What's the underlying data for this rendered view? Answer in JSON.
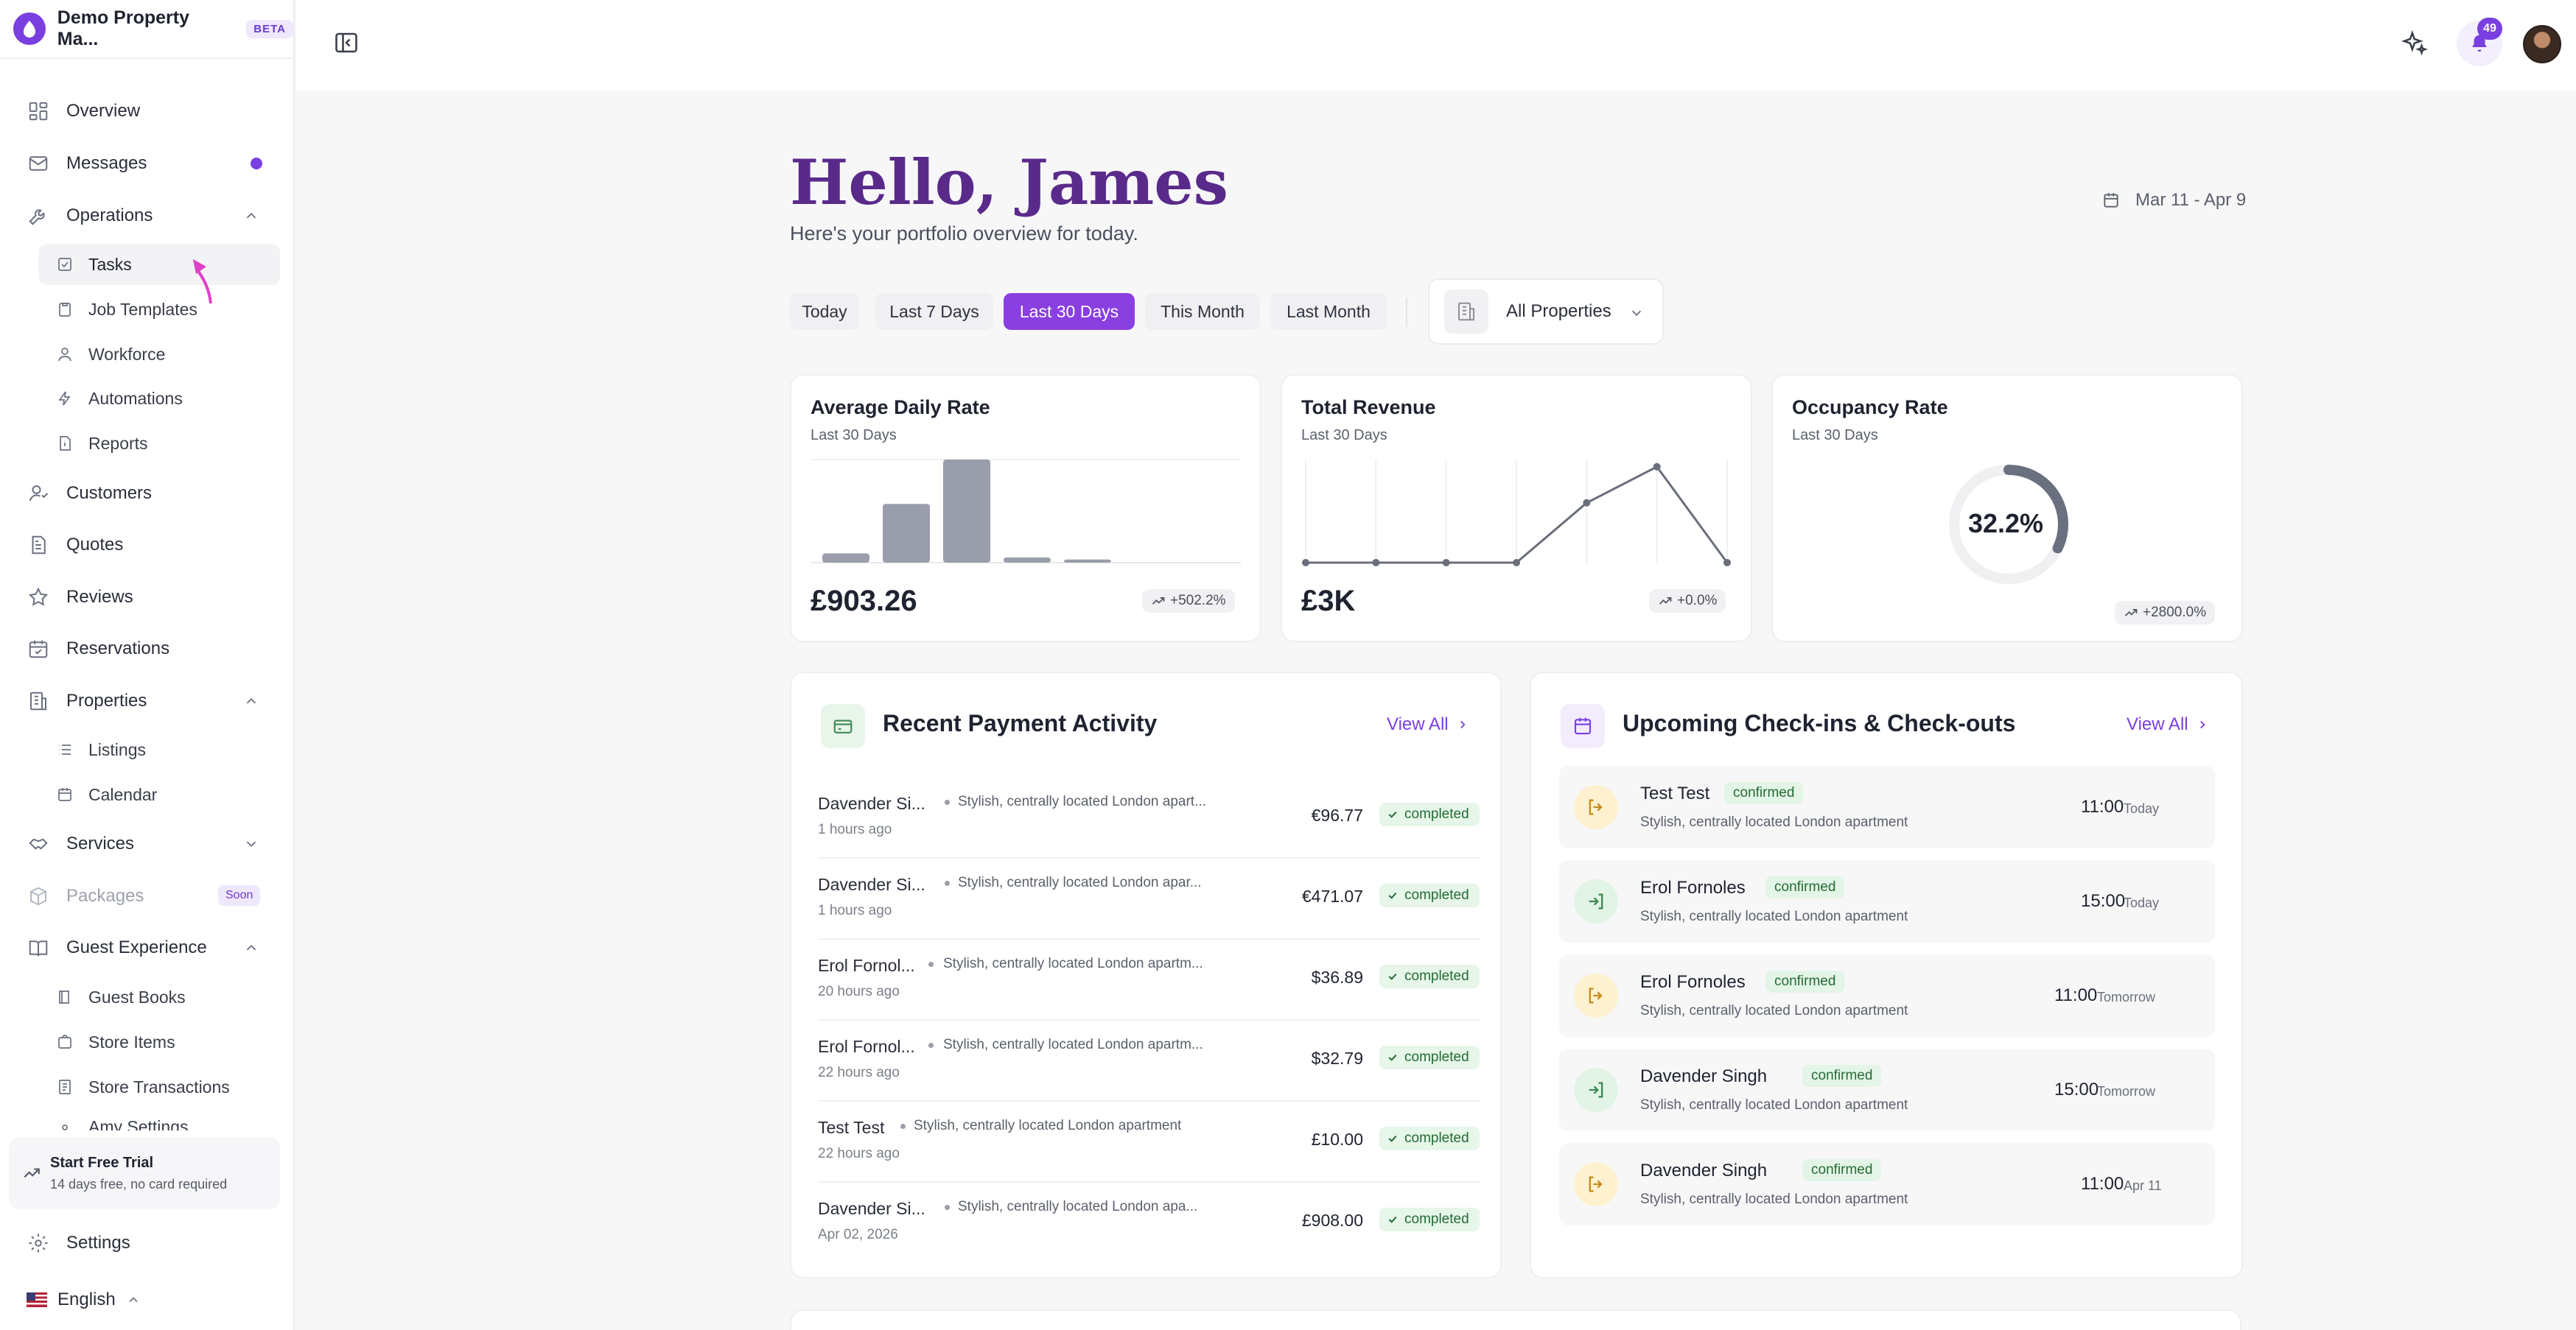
{
  "brand": {
    "name": "Demo Property Ma...",
    "badge": "BETA"
  },
  "sidebar": {
    "overview": "Overview",
    "messages": "Messages",
    "operations": "Operations",
    "operations_sub": [
      "Tasks",
      "Job Templates",
      "Workforce",
      "Automations",
      "Reports"
    ],
    "customers": "Customers",
    "quotes": "Quotes",
    "reviews": "Reviews",
    "reservations": "Reservations",
    "properties": "Properties",
    "properties_sub": [
      "Listings",
      "Calendar"
    ],
    "services": "Services",
    "packages": "Packages",
    "packages_badge": "Soon",
    "guest_experience": "Guest Experience",
    "guest_sub": [
      "Guest Books",
      "Store Items",
      "Store Transactions",
      "Amy Settings"
    ],
    "trial_title": "Start Free Trial",
    "trial_sub": "14 days free, no card required",
    "settings": "Settings",
    "language": "English"
  },
  "topbar": {
    "notifications_count": "49"
  },
  "greeting": {
    "title": "Hello, James",
    "subtitle": "Here's your portfolio overview for today."
  },
  "date_range": "Mar 11 - Apr 9",
  "filters": {
    "options": [
      "Today",
      "Last 7 Days",
      "Last 30 Days",
      "This Month",
      "Last Month"
    ],
    "selected": "Last 30 Days"
  },
  "property_select": "All Properties",
  "kpis": {
    "adr": {
      "title": "Average Daily Rate",
      "period": "Last 30 Days",
      "value": "£903.26",
      "trend": "+502.2%"
    },
    "revenue": {
      "title": "Total Revenue",
      "period": "Last 30 Days",
      "value": "£3K",
      "trend": "+0.0%"
    },
    "occupancy": {
      "title": "Occupancy Rate",
      "period": "Last 30 Days",
      "value": "32.2%",
      "trend": "+2800.0%",
      "fraction": 0.322
    }
  },
  "chart_data": [
    {
      "type": "bar",
      "values": [
        0.09,
        0.57,
        1.0,
        0.05,
        0.03,
        0
      ]
    },
    {
      "type": "line",
      "values": [
        0,
        0,
        0,
        0,
        0.58,
        0.93,
        0
      ]
    }
  ],
  "payments": {
    "title": "Recent Payment Activity",
    "view_all": "View All",
    "rows": [
      {
        "name": "Davender Si...",
        "desc": "Stylish, centrally located London apart...",
        "ago": "1 hours ago",
        "amount": "€96.77",
        "status": "completed"
      },
      {
        "name": "Davender Si...",
        "desc": "Stylish, centrally located London apar...",
        "ago": "1 hours ago",
        "amount": "€471.07",
        "status": "completed"
      },
      {
        "name": "Erol Fornol...",
        "desc": "Stylish, centrally located London apartm...",
        "ago": "20 hours ago",
        "amount": "$36.89",
        "status": "completed"
      },
      {
        "name": "Erol Fornol...",
        "desc": "Stylish, centrally located London apartm...",
        "ago": "22 hours ago",
        "amount": "$32.79",
        "status": "completed"
      },
      {
        "name": "Test Test",
        "desc": "Stylish, centrally located London apartment",
        "ago": "22 hours ago",
        "amount": "£10.00",
        "status": "completed"
      },
      {
        "name": "Davender Si...",
        "desc": "Stylish, centrally located London apa...",
        "ago": "Apr 02, 2026",
        "amount": "£908.00",
        "status": "completed"
      }
    ]
  },
  "checkins": {
    "title": "Upcoming Check-ins & Check-outs",
    "view_all": "View All",
    "rows": [
      {
        "name": "Test Test",
        "badge": "confirmed",
        "desc": "Stylish, centrally located London apartment",
        "time": "11:00",
        "when": "Today",
        "kind": "check-out"
      },
      {
        "name": "Erol Fornoles",
        "badge": "confirmed",
        "desc": "Stylish, centrally located London apartment",
        "time": "15:00",
        "when": "Today",
        "kind": "check-in"
      },
      {
        "name": "Erol Fornoles",
        "badge": "confirmed",
        "desc": "Stylish, centrally located London apartment",
        "time": "11:00",
        "when": "Tomorrow",
        "kind": "check-out"
      },
      {
        "name": "Davender Singh",
        "badge": "confirmed",
        "desc": "Stylish, centrally located London apartment",
        "time": "15:00",
        "when": "Tomorrow",
        "kind": "check-in"
      },
      {
        "name": "Davender Singh",
        "badge": "confirmed",
        "desc": "Stylish, centrally located London apartment",
        "time": "11:00",
        "when": "Apr 11",
        "kind": "check-out"
      }
    ]
  },
  "colors": {
    "accent": "#7a3fe0",
    "heading": "#5a2a8a",
    "success_bg": "#e6f6e9",
    "success_fg": "#256b35",
    "checkout_bg": "#fdf1cf",
    "checkin_bg": "#e2f4e5"
  }
}
